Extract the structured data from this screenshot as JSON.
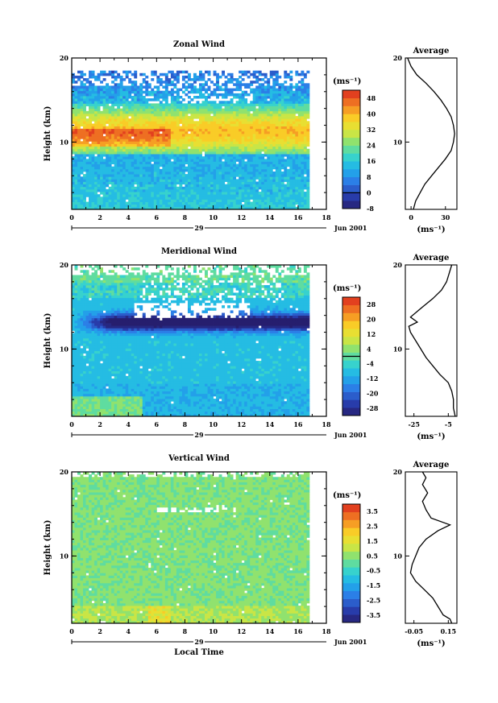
{
  "chart_data": [
    {
      "type": "heatmap",
      "title": "Zonal Wind",
      "ylabel": "Height (km)",
      "xlabel": "",
      "xlim": [
        0,
        18
      ],
      "ylim": [
        2,
        20
      ],
      "x_ticks": [
        0,
        2,
        4,
        6,
        8,
        10,
        12,
        14,
        16,
        18
      ],
      "y_ticks": [
        10,
        20
      ],
      "date_marker": "29",
      "date_label": "Jun 2001",
      "colorbar": {
        "unit": "(ms⁻¹)",
        "ticks": [
          48,
          40,
          32,
          24,
          16,
          8,
          0,
          -8
        ],
        "min": -8,
        "max": 52,
        "zero_line": 0
      },
      "profile": {
        "title": "Average",
        "xlabel": "(ms⁻¹)",
        "xlim": [
          -5,
          40
        ],
        "ylim": [
          2,
          20
        ],
        "x_ticks": [
          0,
          30
        ],
        "y_ticks": [
          10,
          20
        ],
        "x": [
          2,
          4,
          8,
          12,
          18,
          24,
          30,
          35,
          37,
          38,
          37,
          35,
          31,
          26,
          20,
          13,
          5,
          0,
          -3
        ],
        "y": [
          2,
          3,
          4,
          5,
          6,
          7,
          8,
          9,
          10,
          11,
          12,
          13,
          14,
          15,
          16,
          17,
          18,
          19,
          20
        ]
      }
    },
    {
      "type": "heatmap",
      "title": "Meridional Wind",
      "ylabel": "Height (km)",
      "xlabel": "",
      "xlim": [
        0,
        18
      ],
      "ylim": [
        2,
        20
      ],
      "x_ticks": [
        0,
        2,
        4,
        6,
        8,
        10,
        12,
        14,
        16,
        18
      ],
      "y_ticks": [
        10,
        20
      ],
      "date_marker": "29",
      "date_label": "Jun 2001",
      "colorbar": {
        "unit": "(ms⁻¹)",
        "ticks": [
          28,
          20,
          12,
          4,
          -4,
          -12,
          -20,
          -28
        ],
        "min": -32,
        "max": 32,
        "zero_line": 0
      },
      "profile": {
        "title": "Average",
        "xlabel": "(ms⁻¹)",
        "xlim": [
          -30,
          0
        ],
        "ylim": [
          2,
          20
        ],
        "x_ticks": [
          -25,
          -5
        ],
        "y_ticks": [
          10,
          20
        ],
        "x": [
          -1,
          -2,
          -2,
          -3,
          -5,
          -10,
          -14,
          -18,
          -21,
          -24,
          -27,
          -28,
          -23,
          -27,
          -20,
          -14,
          -9,
          -6,
          -3
        ],
        "y": [
          2,
          3,
          4,
          5,
          6,
          7,
          8,
          9,
          10,
          11,
          12,
          12.7,
          13.2,
          13.8,
          15,
          16,
          17,
          18,
          20
        ]
      }
    },
    {
      "type": "heatmap",
      "title": "Vertical Wind",
      "ylabel": "Height (km)",
      "xlabel": "Local Time",
      "xlim": [
        0,
        18
      ],
      "ylim": [
        2,
        20
      ],
      "x_ticks": [
        0,
        2,
        4,
        6,
        8,
        10,
        12,
        14,
        16,
        18
      ],
      "y_ticks": [
        10,
        20
      ],
      "date_marker": "29",
      "date_label": "Jun 2001",
      "colorbar": {
        "unit": "(ms⁻¹)",
        "ticks": [
          3.5,
          2.5,
          1.5,
          0.5,
          -0.5,
          -1.5,
          -2.5,
          -3.5
        ],
        "min": -4,
        "max": 4,
        "zero_line": null
      },
      "profile": {
        "title": "Average",
        "xlabel": "(ms⁻¹)",
        "xlim": [
          -0.1,
          0.2
        ],
        "ylim": [
          2,
          20
        ],
        "x_ticks": [
          -0.05,
          0.15
        ],
        "y_ticks": [
          10,
          20
        ],
        "x": [
          0.17,
          0.16,
          0.12,
          0.09,
          0.06,
          0.01,
          -0.04,
          -0.07,
          -0.06,
          -0.04,
          -0.02,
          0.02,
          0.09,
          0.16,
          0.05,
          0.02,
          0.0,
          0.03,
          0.0,
          0.02,
          0.0
        ],
        "y": [
          2,
          2.5,
          3,
          4,
          5,
          6,
          7,
          8,
          9,
          10,
          11,
          12,
          13,
          13.7,
          14.5,
          15.5,
          16.5,
          17.5,
          18.5,
          19.3,
          20
        ]
      }
    }
  ]
}
